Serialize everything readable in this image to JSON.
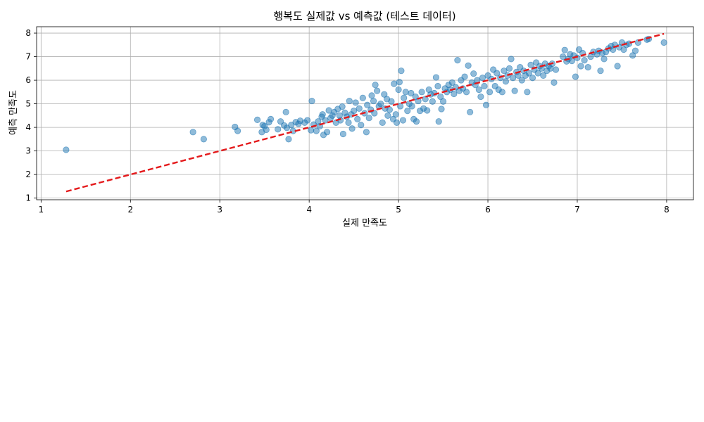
{
  "chart_data": {
    "type": "scatter",
    "title": "행복도 실제값 vs 예측값 (테스트 데이터)",
    "xlabel": "실제 만족도",
    "ylabel": "예측 만족도",
    "xlim": [
      0.95,
      8.3
    ],
    "ylim": [
      0.93,
      8.27
    ],
    "xticks": [
      1,
      2,
      3,
      4,
      5,
      6,
      7,
      8
    ],
    "yticks": [
      1,
      2,
      3,
      4,
      5,
      6,
      7,
      8
    ],
    "grid": true,
    "colors": {
      "points": "#1f77b4",
      "reference_line": "#e41a1c"
    },
    "reference_line": {
      "x": [
        1.28,
        7.97
      ],
      "y": [
        1.28,
        7.97
      ]
    },
    "series": [
      {
        "points": [
          [
            1.28,
            3.05
          ],
          [
            2.7,
            3.8
          ],
          [
            2.82,
            3.5
          ],
          [
            3.17,
            4.02
          ],
          [
            3.2,
            3.85
          ],
          [
            3.42,
            4.32
          ],
          [
            3.47,
            3.8
          ],
          [
            3.48,
            4.1
          ],
          [
            3.5,
            4.05
          ],
          [
            3.52,
            3.9
          ],
          [
            3.55,
            4.22
          ],
          [
            3.57,
            4.35
          ],
          [
            3.65,
            3.92
          ],
          [
            3.68,
            4.25
          ],
          [
            3.72,
            4.08
          ],
          [
            3.74,
            4.65
          ],
          [
            3.75,
            3.98
          ],
          [
            3.77,
            3.5
          ],
          [
            3.8,
            4.1
          ],
          [
            3.82,
            3.85
          ],
          [
            3.85,
            4.22
          ],
          [
            3.88,
            4.15
          ],
          [
            3.9,
            4.28
          ],
          [
            3.95,
            4.2
          ],
          [
            3.98,
            4.3
          ],
          [
            4.02,
            3.88
          ],
          [
            4.03,
            5.12
          ],
          [
            4.05,
            4.12
          ],
          [
            4.08,
            3.85
          ],
          [
            4.1,
            4.25
          ],
          [
            4.12,
            4.05
          ],
          [
            4.14,
            4.45
          ],
          [
            4.15,
            4.55
          ],
          [
            4.16,
            3.68
          ],
          [
            4.18,
            4.3
          ],
          [
            4.2,
            3.8
          ],
          [
            4.22,
            4.72
          ],
          [
            4.24,
            4.4
          ],
          [
            4.26,
            4.5
          ],
          [
            4.28,
            4.65
          ],
          [
            4.3,
            4.2
          ],
          [
            4.32,
            4.78
          ],
          [
            4.34,
            4.5
          ],
          [
            4.35,
            4.3
          ],
          [
            4.37,
            4.88
          ],
          [
            4.38,
            3.72
          ],
          [
            4.4,
            4.62
          ],
          [
            4.42,
            4.45
          ],
          [
            4.44,
            4.2
          ],
          [
            4.45,
            5.12
          ],
          [
            4.47,
            4.55
          ],
          [
            4.48,
            3.95
          ],
          [
            4.5,
            4.7
          ],
          [
            4.52,
            5.05
          ],
          [
            4.54,
            4.35
          ],
          [
            4.56,
            4.8
          ],
          [
            4.58,
            4.1
          ],
          [
            4.6,
            5.25
          ],
          [
            4.62,
            4.6
          ],
          [
            4.64,
            3.8
          ],
          [
            4.65,
            4.95
          ],
          [
            4.67,
            4.4
          ],
          [
            4.69,
            4.75
          ],
          [
            4.7,
            5.35
          ],
          [
            4.72,
            5.12
          ],
          [
            4.73,
            4.6
          ],
          [
            4.74,
            5.8
          ],
          [
            4.76,
            5.55
          ],
          [
            4.78,
            4.9
          ],
          [
            4.8,
            5.0
          ],
          [
            4.82,
            4.2
          ],
          [
            4.84,
            5.4
          ],
          [
            4.85,
            4.8
          ],
          [
            4.87,
            5.2
          ],
          [
            4.88,
            4.5
          ],
          [
            4.9,
            4.75
          ],
          [
            4.92,
            5.1
          ],
          [
            4.94,
            4.35
          ],
          [
            4.95,
            5.85
          ],
          [
            4.97,
            4.55
          ],
          [
            4.98,
            4.2
          ],
          [
            5.0,
            5.6
          ],
          [
            5.01,
            5.92
          ],
          [
            5.02,
            4.9
          ],
          [
            5.03,
            6.4
          ],
          [
            5.05,
            4.3
          ],
          [
            5.06,
            5.25
          ],
          [
            5.08,
            5.5
          ],
          [
            5.1,
            4.7
          ],
          [
            5.12,
            5.0
          ],
          [
            5.14,
            5.45
          ],
          [
            5.15,
            4.9
          ],
          [
            5.17,
            4.35
          ],
          [
            5.19,
            5.3
          ],
          [
            5.2,
            4.25
          ],
          [
            5.22,
            5.12
          ],
          [
            5.24,
            4.7
          ],
          [
            5.26,
            5.5
          ],
          [
            5.28,
            4.8
          ],
          [
            5.3,
            5.2
          ],
          [
            5.32,
            4.72
          ],
          [
            5.34,
            5.6
          ],
          [
            5.36,
            5.4
          ],
          [
            5.38,
            5.1
          ],
          [
            5.4,
            5.45
          ],
          [
            5.42,
            6.12
          ],
          [
            5.44,
            5.75
          ],
          [
            5.45,
            4.25
          ],
          [
            5.47,
            5.3
          ],
          [
            5.48,
            4.78
          ],
          [
            5.5,
            5.1
          ],
          [
            5.52,
            5.65
          ],
          [
            5.54,
            5.5
          ],
          [
            5.56,
            5.8
          ],
          [
            5.58,
            5.6
          ],
          [
            5.6,
            5.9
          ],
          [
            5.62,
            5.42
          ],
          [
            5.64,
            5.7
          ],
          [
            5.66,
            6.85
          ],
          [
            5.68,
            5.55
          ],
          [
            5.7,
            6.0
          ],
          [
            5.72,
            5.65
          ],
          [
            5.74,
            6.15
          ],
          [
            5.76,
            5.5
          ],
          [
            5.78,
            6.62
          ],
          [
            5.8,
            4.65
          ],
          [
            5.82,
            5.9
          ],
          [
            5.84,
            6.28
          ],
          [
            5.86,
            5.8
          ],
          [
            5.88,
            6.0
          ],
          [
            5.9,
            5.6
          ],
          [
            5.92,
            5.3
          ],
          [
            5.94,
            6.1
          ],
          [
            5.96,
            5.75
          ],
          [
            5.98,
            4.95
          ],
          [
            6.0,
            6.2
          ],
          [
            6.02,
            5.5
          ],
          [
            6.04,
            6.05
          ],
          [
            6.06,
            6.45
          ],
          [
            6.08,
            5.75
          ],
          [
            6.1,
            6.3
          ],
          [
            6.12,
            5.6
          ],
          [
            6.14,
            6.1
          ],
          [
            6.16,
            5.5
          ],
          [
            6.18,
            6.4
          ],
          [
            6.2,
            5.95
          ],
          [
            6.22,
            6.2
          ],
          [
            6.24,
            6.5
          ],
          [
            6.26,
            6.9
          ],
          [
            6.28,
            6.1
          ],
          [
            6.3,
            5.55
          ],
          [
            6.32,
            6.35
          ],
          [
            6.34,
            6.2
          ],
          [
            6.36,
            6.55
          ],
          [
            6.38,
            6.0
          ],
          [
            6.4,
            6.4
          ],
          [
            6.42,
            6.2
          ],
          [
            6.44,
            5.5
          ],
          [
            6.46,
            6.3
          ],
          [
            6.48,
            6.65
          ],
          [
            6.5,
            6.1
          ],
          [
            6.52,
            6.45
          ],
          [
            6.54,
            6.75
          ],
          [
            6.56,
            6.3
          ],
          [
            6.58,
            6.6
          ],
          [
            6.6,
            6.5
          ],
          [
            6.62,
            6.2
          ],
          [
            6.64,
            6.7
          ],
          [
            6.66,
            6.4
          ],
          [
            6.68,
            6.6
          ],
          [
            6.7,
            6.5
          ],
          [
            6.72,
            6.7
          ],
          [
            6.74,
            5.9
          ],
          [
            6.76,
            6.45
          ],
          [
            6.84,
            7.0
          ],
          [
            6.86,
            7.28
          ],
          [
            6.88,
            6.8
          ],
          [
            6.9,
            6.9
          ],
          [
            6.92,
            7.1
          ],
          [
            6.94,
            6.82
          ],
          [
            6.96,
            7.05
          ],
          [
            6.98,
            6.15
          ],
          [
            7.0,
            6.95
          ],
          [
            7.02,
            7.3
          ],
          [
            7.04,
            6.6
          ],
          [
            7.06,
            7.15
          ],
          [
            7.08,
            6.85
          ],
          [
            7.12,
            6.55
          ],
          [
            7.15,
            7.0
          ],
          [
            7.18,
            7.2
          ],
          [
            7.22,
            7.1
          ],
          [
            7.24,
            7.25
          ],
          [
            7.26,
            6.4
          ],
          [
            7.28,
            7.15
          ],
          [
            7.3,
            6.9
          ],
          [
            7.32,
            7.2
          ],
          [
            7.35,
            7.35
          ],
          [
            7.38,
            7.45
          ],
          [
            7.4,
            7.3
          ],
          [
            7.42,
            7.5
          ],
          [
            7.45,
            6.6
          ],
          [
            7.47,
            7.4
          ],
          [
            7.5,
            7.6
          ],
          [
            7.52,
            7.3
          ],
          [
            7.55,
            7.5
          ],
          [
            7.58,
            7.55
          ],
          [
            7.62,
            7.05
          ],
          [
            7.65,
            7.25
          ],
          [
            7.68,
            7.6
          ],
          [
            7.78,
            7.72
          ],
          [
            7.8,
            7.75
          ],
          [
            7.97,
            7.6
          ]
        ]
      }
    ]
  }
}
